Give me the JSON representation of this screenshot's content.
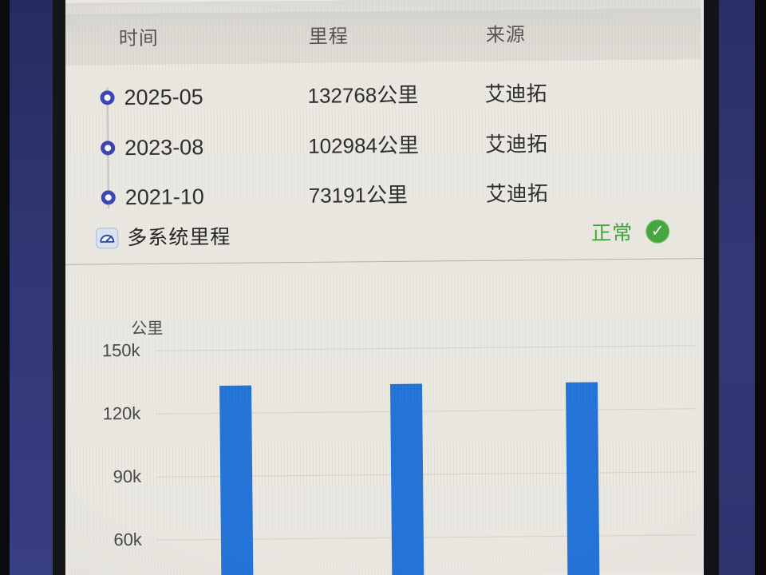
{
  "colors": {
    "bar_blue": "#2273d8",
    "timeline_dot_blue": "#3b45b2",
    "status_green": "#3fa338",
    "badge_green": "#46a63e",
    "bezel_blue": "#2f3572",
    "screen_bg": "#eae8e1"
  },
  "table": {
    "headers": {
      "time": "时间",
      "mileage": "里程",
      "source": "来源"
    },
    "rows": [
      {
        "time": "2025-05",
        "mileage": "132768公里",
        "source": "艾迪拓"
      },
      {
        "time": "2023-08",
        "mileage": "102984公里",
        "source": "艾迪拓"
      },
      {
        "time": "2021-10",
        "mileage": "73191公里",
        "source": "艾迪拓"
      }
    ]
  },
  "summary": {
    "label": "多系统里程",
    "status": "正常",
    "status_icon": "check-circle-icon"
  },
  "chart_data": {
    "type": "bar",
    "title": "",
    "ylabel": "公里",
    "categories": [
      "",
      "",
      ""
    ],
    "values": [
      132768,
      132768,
      132768
    ],
    "y_tick_labels": [
      "150k",
      "120k",
      "90k",
      "60k"
    ],
    "y_tick_values": [
      150000,
      120000,
      90000,
      60000
    ],
    "ylim_visible": [
      45000,
      155000
    ],
    "grid": "faint-horizontal",
    "legend": "none",
    "bars_clipped_at_bottom": true
  }
}
